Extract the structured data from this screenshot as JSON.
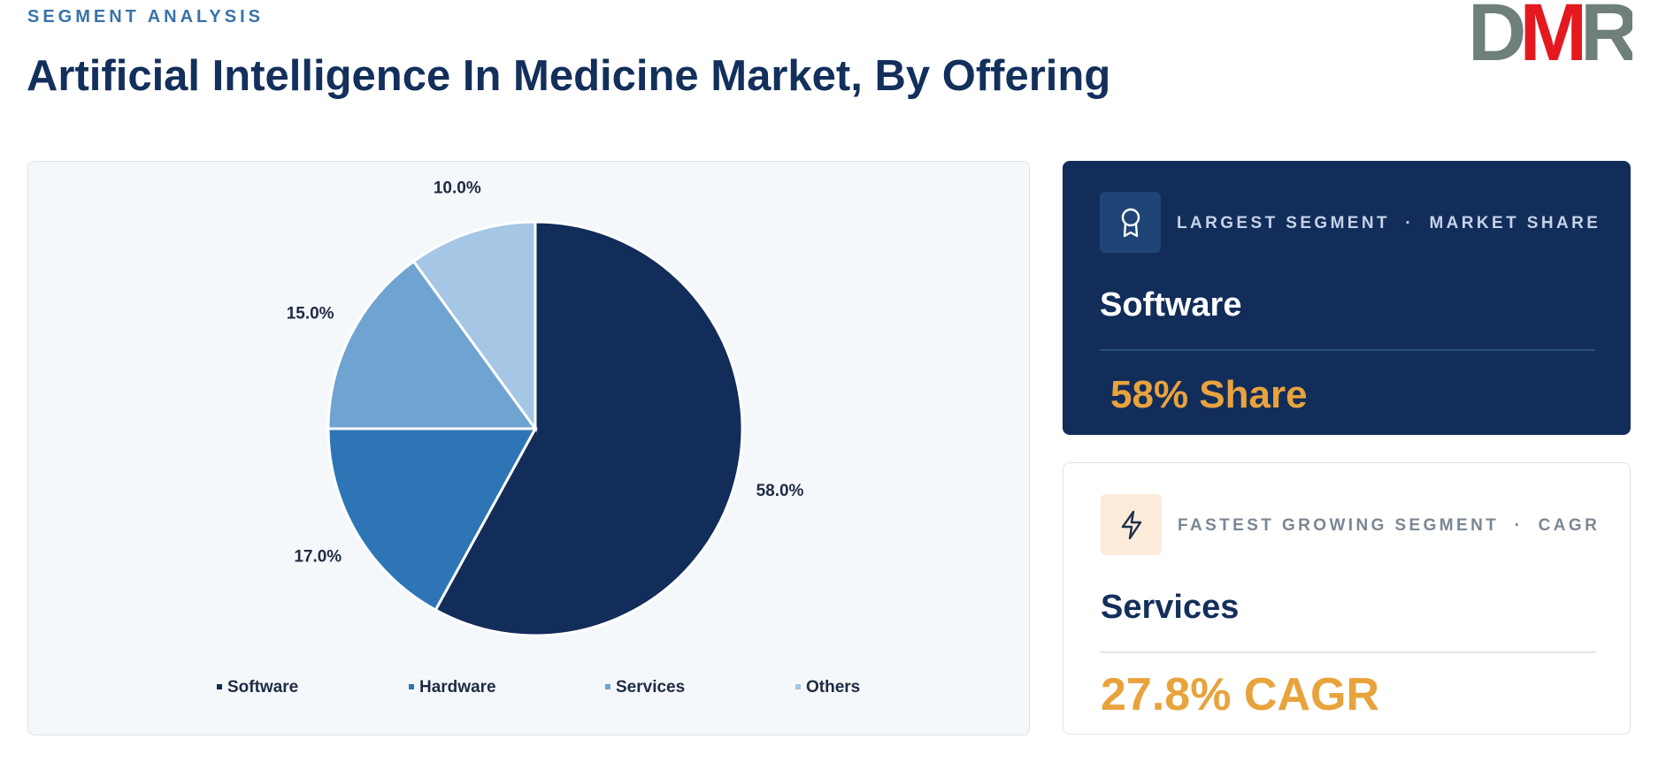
{
  "header": {
    "kicker": "SEGMENT ANALYSIS",
    "title": "Artificial Intelligence In Medicine Market, By Offering"
  },
  "logo": {
    "letters": [
      "D",
      "M",
      "R"
    ]
  },
  "chart_data": {
    "type": "pie",
    "categories": [
      "Software",
      "Hardware",
      "Services",
      "Others"
    ],
    "values": [
      58,
      17,
      15,
      10
    ],
    "value_labels": [
      "58.0%",
      "17.0%",
      "15.0%",
      "10.0%"
    ],
    "colors": [
      "#122d5a",
      "#2e75b6",
      "#6fa3d2",
      "#a5c6e4"
    ],
    "legend": "bottom"
  },
  "cards": [
    {
      "label": "LARGEST SEGMENT  ·  MARKET SHARE",
      "segment": "Software",
      "metric": "58% Share"
    },
    {
      "label": "FASTEST GROWING SEGMENT  ·  CAGR",
      "segment": "Services",
      "metric": "27.8% CAGR"
    }
  ]
}
